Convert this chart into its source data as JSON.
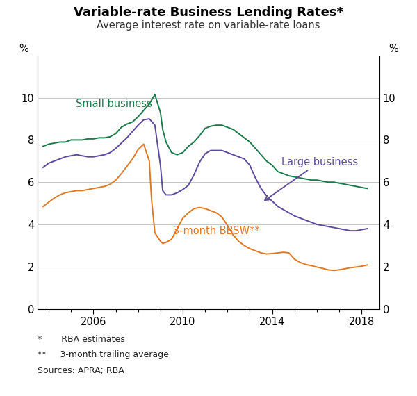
{
  "title": "Variable-rate Business Lending Rates*",
  "subtitle": "Average interest rate on variable-rate loans",
  "ylabel_left": "%",
  "ylabel_right": "%",
  "ylim": [
    0,
    12
  ],
  "yticks": [
    0,
    2,
    4,
    6,
    8,
    10
  ],
  "xlim_start": 2003.5,
  "xlim_end": 2018.8,
  "xticks": [
    2006,
    2010,
    2014,
    2018
  ],
  "footnote1": "*       RBA estimates",
  "footnote2": "**     3-month trailing average",
  "footnote3": "Sources: APRA; RBA",
  "small_business_label": "Small business",
  "large_business_label": "Large business",
  "bbsw_label": "3-month BBSW**",
  "small_business_color": "#1a7a4a",
  "large_business_color": "#5c4a9e",
  "bbsw_color": "#e07820",
  "background_color": "#ffffff",
  "grid_color": "#bbbbbb",
  "small_business_x": [
    2003.75,
    2004.0,
    2004.25,
    2004.5,
    2004.75,
    2005.0,
    2005.25,
    2005.5,
    2005.75,
    2006.0,
    2006.25,
    2006.5,
    2006.75,
    2007.0,
    2007.25,
    2007.5,
    2007.75,
    2008.0,
    2008.25,
    2008.5,
    2008.75,
    2009.0,
    2009.1,
    2009.25,
    2009.5,
    2009.75,
    2010.0,
    2010.25,
    2010.5,
    2010.75,
    2011.0,
    2011.25,
    2011.5,
    2011.75,
    2012.0,
    2012.25,
    2012.5,
    2012.75,
    2013.0,
    2013.25,
    2013.5,
    2013.75,
    2014.0,
    2014.25,
    2014.5,
    2014.75,
    2015.0,
    2015.25,
    2015.5,
    2015.75,
    2016.0,
    2016.25,
    2016.5,
    2016.75,
    2017.0,
    2017.25,
    2017.5,
    2017.75,
    2018.0,
    2018.25
  ],
  "small_business_y": [
    7.7,
    7.8,
    7.85,
    7.9,
    7.9,
    8.0,
    8.0,
    8.0,
    8.05,
    8.05,
    8.1,
    8.1,
    8.15,
    8.3,
    8.6,
    8.75,
    8.85,
    9.1,
    9.4,
    9.7,
    10.15,
    9.3,
    8.5,
    7.9,
    7.4,
    7.3,
    7.4,
    7.7,
    7.9,
    8.2,
    8.55,
    8.65,
    8.7,
    8.7,
    8.6,
    8.5,
    8.3,
    8.1,
    7.9,
    7.6,
    7.3,
    7.0,
    6.8,
    6.5,
    6.4,
    6.3,
    6.25,
    6.2,
    6.15,
    6.1,
    6.1,
    6.05,
    6.0,
    6.0,
    5.95,
    5.9,
    5.85,
    5.8,
    5.75,
    5.7
  ],
  "large_business_x": [
    2003.75,
    2004.0,
    2004.25,
    2004.5,
    2004.75,
    2005.0,
    2005.25,
    2005.5,
    2005.75,
    2006.0,
    2006.25,
    2006.5,
    2006.75,
    2007.0,
    2007.25,
    2007.5,
    2007.75,
    2008.0,
    2008.25,
    2008.5,
    2008.75,
    2009.0,
    2009.1,
    2009.25,
    2009.5,
    2009.75,
    2010.0,
    2010.25,
    2010.5,
    2010.75,
    2011.0,
    2011.25,
    2011.5,
    2011.75,
    2012.0,
    2012.25,
    2012.5,
    2012.75,
    2013.0,
    2013.25,
    2013.5,
    2013.75,
    2014.0,
    2014.25,
    2014.5,
    2014.75,
    2015.0,
    2015.25,
    2015.5,
    2015.75,
    2016.0,
    2016.25,
    2016.5,
    2016.75,
    2017.0,
    2017.25,
    2017.5,
    2017.75,
    2018.0,
    2018.25
  ],
  "large_business_y": [
    6.7,
    6.9,
    7.0,
    7.1,
    7.2,
    7.25,
    7.3,
    7.25,
    7.2,
    7.2,
    7.25,
    7.3,
    7.4,
    7.6,
    7.85,
    8.1,
    8.4,
    8.7,
    8.95,
    9.0,
    8.7,
    6.8,
    5.6,
    5.4,
    5.4,
    5.5,
    5.65,
    5.85,
    6.35,
    6.95,
    7.35,
    7.5,
    7.5,
    7.5,
    7.4,
    7.3,
    7.2,
    7.1,
    6.8,
    6.2,
    5.7,
    5.35,
    5.1,
    4.85,
    4.7,
    4.55,
    4.4,
    4.3,
    4.2,
    4.1,
    4.0,
    3.95,
    3.9,
    3.85,
    3.8,
    3.75,
    3.7,
    3.7,
    3.75,
    3.8
  ],
  "bbsw_x": [
    2003.75,
    2004.0,
    2004.25,
    2004.5,
    2004.75,
    2005.0,
    2005.25,
    2005.5,
    2005.75,
    2006.0,
    2006.25,
    2006.5,
    2006.75,
    2007.0,
    2007.25,
    2007.5,
    2007.75,
    2008.0,
    2008.25,
    2008.5,
    2008.6,
    2008.75,
    2009.0,
    2009.1,
    2009.25,
    2009.5,
    2009.75,
    2010.0,
    2010.25,
    2010.5,
    2010.75,
    2011.0,
    2011.25,
    2011.5,
    2011.75,
    2012.0,
    2012.25,
    2012.5,
    2012.75,
    2013.0,
    2013.25,
    2013.5,
    2013.75,
    2014.0,
    2014.25,
    2014.5,
    2014.75,
    2015.0,
    2015.25,
    2015.5,
    2015.75,
    2016.0,
    2016.25,
    2016.5,
    2016.75,
    2017.0,
    2017.25,
    2017.5,
    2017.75,
    2018.0,
    2018.25
  ],
  "bbsw_y": [
    4.85,
    5.05,
    5.25,
    5.4,
    5.5,
    5.55,
    5.6,
    5.6,
    5.65,
    5.7,
    5.75,
    5.8,
    5.9,
    6.1,
    6.4,
    6.75,
    7.1,
    7.55,
    7.8,
    7.0,
    5.2,
    3.6,
    3.2,
    3.1,
    3.15,
    3.3,
    3.8,
    4.3,
    4.55,
    4.75,
    4.8,
    4.75,
    4.65,
    4.55,
    4.35,
    3.95,
    3.5,
    3.2,
    3.0,
    2.85,
    2.75,
    2.65,
    2.6,
    2.62,
    2.65,
    2.68,
    2.65,
    2.35,
    2.2,
    2.1,
    2.05,
    1.98,
    1.92,
    1.85,
    1.82,
    1.85,
    1.9,
    1.95,
    1.98,
    2.02,
    2.08
  ]
}
